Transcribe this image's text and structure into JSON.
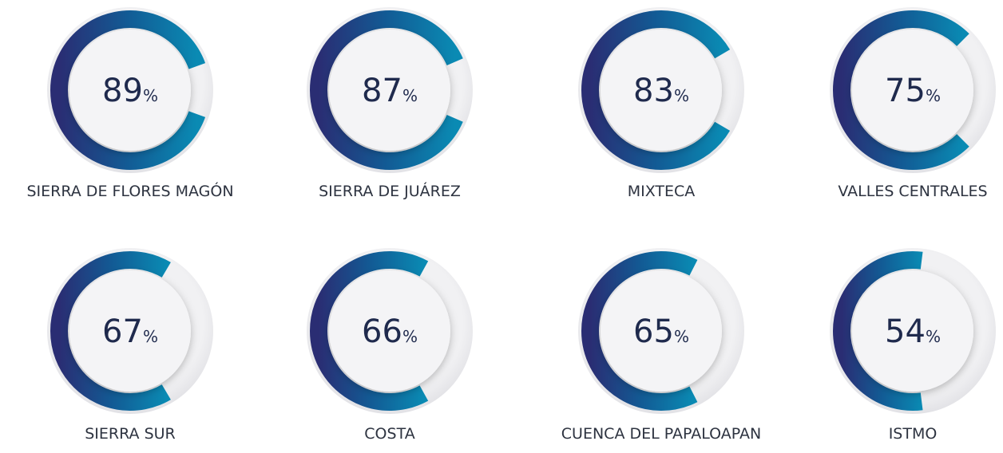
{
  "chart_data": [
    {
      "type": "gauge",
      "label": "SIERRA DE FLORES MAGÓN",
      "value": 89,
      "unit": "%"
    },
    {
      "type": "gauge",
      "label": "SIERRA DE JUÁREZ",
      "value": 87,
      "unit": "%"
    },
    {
      "type": "gauge",
      "label": "MIXTECA",
      "value": 83,
      "unit": "%"
    },
    {
      "type": "gauge",
      "label": "VALLES CENTRALES",
      "value": 75,
      "unit": "%"
    },
    {
      "type": "gauge",
      "label": "SIERRA SUR",
      "value": 67,
      "unit": "%"
    },
    {
      "type": "gauge",
      "label": "COSTA",
      "value": 66,
      "unit": "%"
    },
    {
      "type": "gauge",
      "label": "CUENCA DEL PAPALOAPAN",
      "value": 65,
      "unit": "%"
    },
    {
      "type": "gauge",
      "label": "ISTMO",
      "value": 54,
      "unit": "%"
    }
  ]
}
